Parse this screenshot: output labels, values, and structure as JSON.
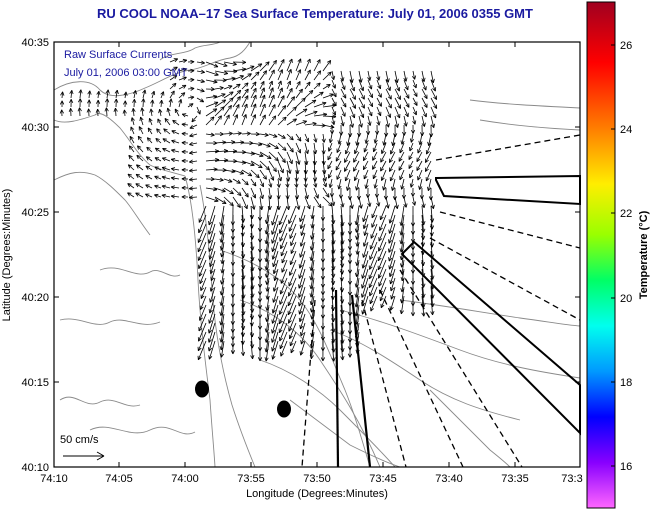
{
  "header": {
    "title": "RU COOL  NOAA–17  Sea Surface Temperature:  July 01, 2006 0355 GMT"
  },
  "overlay": {
    "line1": "Raw Surface Currents",
    "line2": "July 01, 2006 03:00 GMT"
  },
  "axes": {
    "xlabel": "Longitude (Degrees:Minutes)",
    "ylabel": "Latitude (Degrees:Minutes)",
    "xticks": [
      "74:10",
      "74:05",
      "74:00",
      "73:55",
      "73:50",
      "73:45",
      "73:40",
      "73:35",
      "73:3"
    ],
    "yticks": [
      "40:35",
      "40:30",
      "40:25",
      "40:20",
      "40:15",
      "40:10"
    ]
  },
  "scale": {
    "label": "50 cm/s"
  },
  "colorbar": {
    "label": "Temperature (°C)",
    "ticks": [
      "26",
      "24",
      "22",
      "20",
      "18",
      "16"
    ]
  },
  "colors": {
    "title": "#1a1aa0",
    "overlay": "#1a1aa0",
    "frame": "#000000",
    "contour": "#8a8a8a"
  }
}
